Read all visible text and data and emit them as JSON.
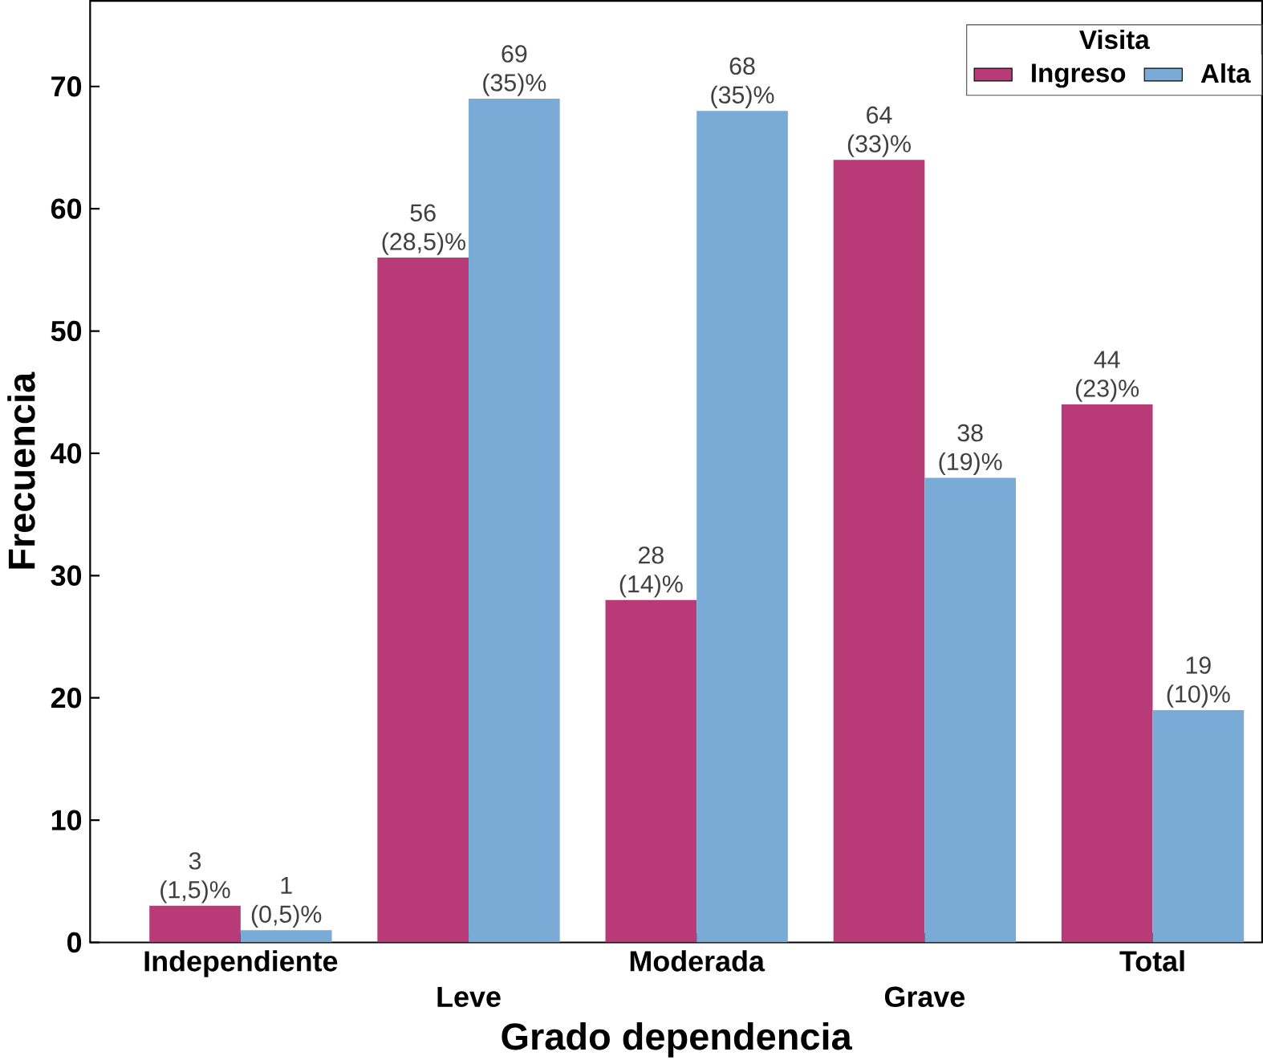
{
  "chart_data": {
    "type": "bar",
    "xlabel": "Grado dependencia",
    "ylabel": "Frecuencia",
    "legend_title": "Visita",
    "legend": "top right",
    "categories": [
      "Independiente",
      "Leve",
      "Moderada",
      "Grave",
      "Total"
    ],
    "ylim": [
      0,
      77
    ],
    "yticks": [
      0,
      10,
      20,
      30,
      40,
      50,
      60,
      70
    ],
    "grid": false,
    "series": [
      {
        "name": "Ingreso",
        "color": "#b83b77",
        "values": [
          3,
          56,
          28,
          64,
          44
        ],
        "value_labels": [
          "3 (1,5)%",
          "56 (28,5)%",
          "28 (14)%",
          "64 (33)%",
          "44 (23)%"
        ]
      },
      {
        "name": "Alta",
        "color": "#7aaad6",
        "values": [
          1,
          69,
          68,
          38,
          19
        ],
        "value_labels": [
          "1 (0,5)%",
          "69 (35)%",
          "68 (35)%",
          "38 (19)%",
          "19 (10)%"
        ]
      }
    ]
  }
}
